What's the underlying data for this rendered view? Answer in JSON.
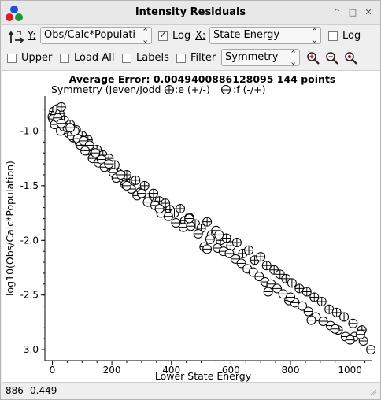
{
  "window": {
    "title": "Intensity Residuals"
  },
  "toolbar": {
    "y_label": "Y:",
    "y_value": "Obs/Calc*Populati",
    "log_y_label": "Log",
    "log_y_checked": true,
    "x_label": "X:",
    "x_value": "State Energy",
    "log_x_label": "Log",
    "log_x_checked": false,
    "upper_label": "Upper",
    "load_all_label": "Load All",
    "labels_label": "Labels",
    "filter_label": "Filter",
    "filter_value": "Symmetry"
  },
  "plot": {
    "title": "Average Error: 0.0049400886128095   144 points",
    "subtitle_prefix": "Symmetry (Jeven/Jodd",
    "legend_e": ":e (+/-)",
    "legend_f": ":f (-/+)"
  },
  "status": {
    "coords": "886  -0.449"
  },
  "chart_data": {
    "type": "scatter",
    "title": "Average Error: 0.0049400886128095   144 points",
    "xlabel": "Lower State Energy",
    "ylabel": "log10(Obs/Calc*Population)",
    "xlim": [
      -25,
      1075
    ],
    "ylim": [
      -3.1,
      -0.68
    ],
    "xticks": [
      0,
      200,
      400,
      600,
      800,
      1000
    ],
    "yticks": [
      -1.0,
      -1.5,
      -2.0,
      -2.5,
      -3.0
    ],
    "series": [
      {
        "name": ":e (+/-)",
        "marker": "circle-plus",
        "points": [
          [
            0,
            -0.87
          ],
          [
            5,
            -0.82
          ],
          [
            10,
            -0.85
          ],
          [
            15,
            -0.8
          ],
          [
            20,
            -0.92
          ],
          [
            25,
            -0.84
          ],
          [
            30,
            -0.78
          ],
          [
            35,
            -0.95
          ],
          [
            40,
            -0.9
          ],
          [
            45,
            -0.98
          ],
          [
            55,
            -1.02
          ],
          [
            60,
            -0.94
          ],
          [
            70,
            -1.06
          ],
          [
            80,
            -0.99
          ],
          [
            90,
            -1.1
          ],
          [
            100,
            -1.04
          ],
          [
            110,
            -1.14
          ],
          [
            120,
            -1.08
          ],
          [
            130,
            -1.16
          ],
          [
            140,
            -1.22
          ],
          [
            150,
            -1.17
          ],
          [
            160,
            -1.27
          ],
          [
            170,
            -1.22
          ],
          [
            180,
            -1.3
          ],
          [
            190,
            -1.25
          ],
          [
            200,
            -1.35
          ],
          [
            210,
            -1.31
          ],
          [
            220,
            -1.38
          ],
          [
            235,
            -1.43
          ],
          [
            250,
            -1.4
          ],
          [
            260,
            -1.48
          ],
          [
            280,
            -1.45
          ],
          [
            295,
            -1.56
          ],
          [
            310,
            -1.5
          ],
          [
            325,
            -1.61
          ],
          [
            340,
            -1.57
          ],
          [
            360,
            -1.64
          ],
          [
            380,
            -1.66
          ],
          [
            395,
            -1.72
          ],
          [
            410,
            -1.75
          ],
          [
            430,
            -1.71
          ],
          [
            445,
            -1.82
          ],
          [
            460,
            -1.79
          ],
          [
            480,
            -1.85
          ],
          [
            500,
            -1.89
          ],
          [
            520,
            -1.83
          ],
          [
            535,
            -1.95
          ],
          [
            550,
            -1.91
          ],
          [
            565,
            -2.0
          ],
          [
            585,
            -1.98
          ],
          [
            600,
            -2.05
          ],
          [
            620,
            -2.02
          ],
          [
            640,
            -2.12
          ],
          [
            660,
            -2.09
          ],
          [
            680,
            -2.18
          ],
          [
            700,
            -2.15
          ],
          [
            720,
            -2.23
          ],
          [
            745,
            -2.27
          ],
          [
            765,
            -2.31
          ],
          [
            785,
            -2.35
          ],
          [
            805,
            -2.39
          ],
          [
            830,
            -2.44
          ],
          [
            855,
            -2.47
          ],
          [
            880,
            -2.52
          ],
          [
            905,
            -2.56
          ],
          [
            930,
            -2.63
          ],
          [
            955,
            -2.66
          ],
          [
            980,
            -2.7
          ],
          [
            1010,
            -2.76
          ],
          [
            1040,
            -2.82
          ]
        ]
      },
      {
        "name": ":f (-/+)",
        "marker": "circle-minus",
        "points": [
          [
            2,
            -0.89
          ],
          [
            8,
            -0.94
          ],
          [
            18,
            -0.88
          ],
          [
            28,
            -1.0
          ],
          [
            38,
            -0.96
          ],
          [
            50,
            -0.97
          ],
          [
            65,
            -1.04
          ],
          [
            75,
            -1.0
          ],
          [
            85,
            -1.07
          ],
          [
            95,
            -1.13
          ],
          [
            105,
            -1.09
          ],
          [
            115,
            -1.18
          ],
          [
            125,
            -1.13
          ],
          [
            135,
            -1.25
          ],
          [
            145,
            -1.2
          ],
          [
            155,
            -1.29
          ],
          [
            165,
            -1.26
          ],
          [
            175,
            -1.33
          ],
          [
            190,
            -1.3
          ],
          [
            205,
            -1.38
          ],
          [
            215,
            -1.43
          ],
          [
            230,
            -1.4
          ],
          [
            245,
            -1.49
          ],
          [
            265,
            -1.53
          ],
          [
            285,
            -1.59
          ],
          [
            300,
            -1.57
          ],
          [
            320,
            -1.65
          ],
          [
            345,
            -1.68
          ],
          [
            365,
            -1.75
          ],
          [
            390,
            -1.78
          ],
          [
            415,
            -1.84
          ],
          [
            440,
            -1.88
          ],
          [
            465,
            -1.87
          ],
          [
            490,
            -1.94
          ],
          [
            510,
            -2.06
          ],
          [
            530,
            -1.99
          ],
          [
            555,
            -2.07
          ],
          [
            575,
            -2.1
          ],
          [
            595,
            -2.12
          ],
          [
            615,
            -2.17
          ],
          [
            635,
            -2.21
          ],
          [
            655,
            -2.26
          ],
          [
            675,
            -2.29
          ],
          [
            695,
            -2.33
          ],
          [
            715,
            -2.38
          ],
          [
            735,
            -2.4
          ],
          [
            755,
            -2.44
          ],
          [
            775,
            -2.49
          ],
          [
            795,
            -2.55
          ],
          [
            815,
            -2.57
          ],
          [
            840,
            -2.6
          ],
          [
            860,
            -2.65
          ],
          [
            885,
            -2.7
          ],
          [
            910,
            -2.74
          ],
          [
            935,
            -2.78
          ],
          [
            960,
            -2.82
          ],
          [
            985,
            -2.88
          ],
          [
            1015,
            -2.88
          ],
          [
            1045,
            -2.92
          ],
          [
            1070,
            -3.0
          ],
          [
            725,
            -2.47
          ],
          [
            800,
            -2.52
          ],
          [
            870,
            -2.73
          ],
          [
            950,
            -2.81
          ],
          [
            1035,
            -2.86
          ],
          [
            560,
            -1.95
          ],
          [
            520,
            -2.08
          ],
          [
            460,
            -1.8
          ],
          [
            360,
            -1.71
          ],
          [
            250,
            -1.5
          ],
          [
            110,
            -1.18
          ],
          [
            60,
            -0.97
          ],
          [
            30,
            -0.93
          ],
          [
            1000,
            -2.91
          ]
        ]
      }
    ]
  }
}
